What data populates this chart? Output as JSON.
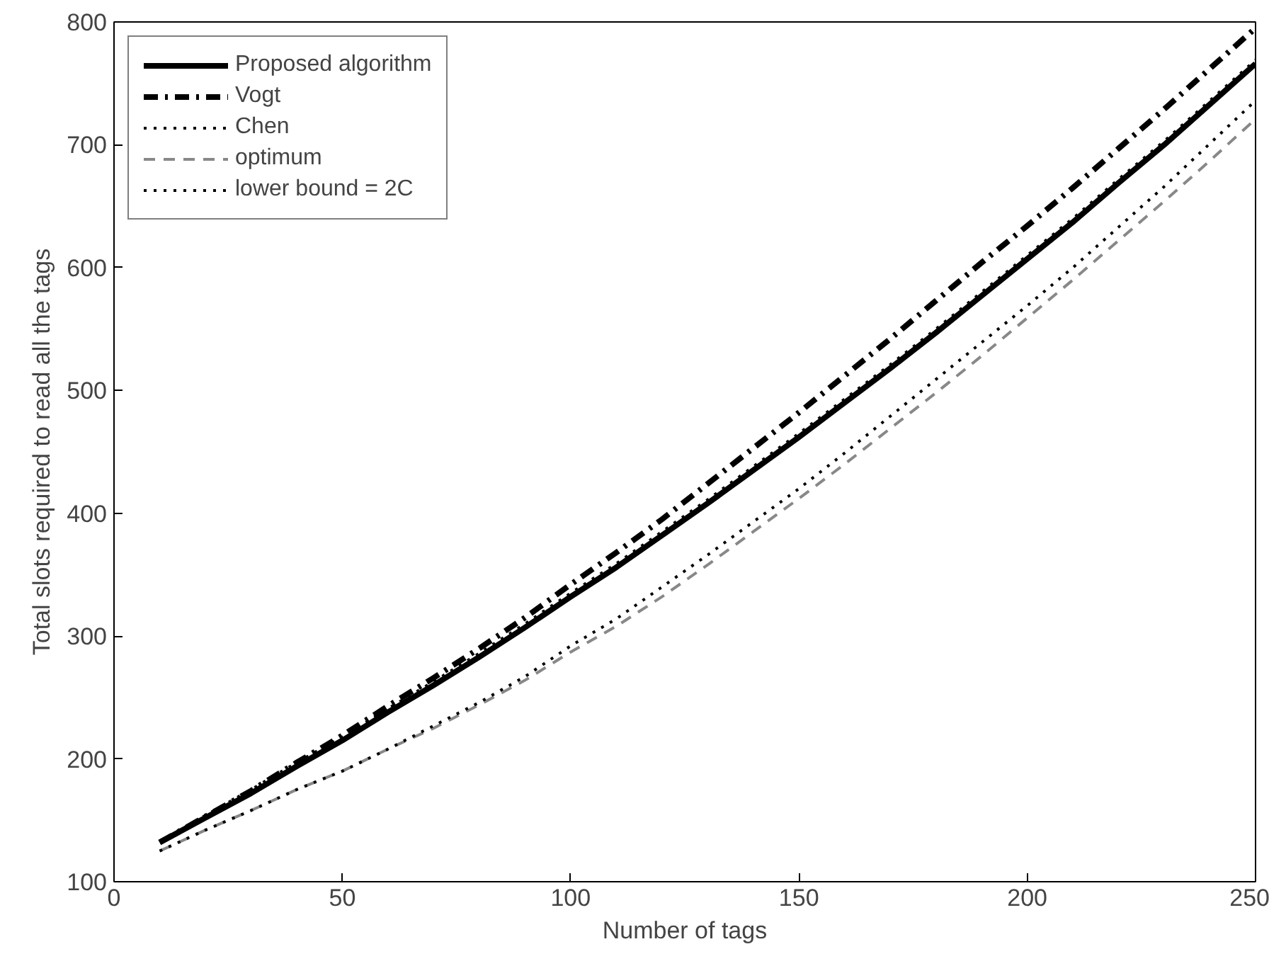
{
  "chart_data": {
    "type": "line",
    "xlabel": "Number of tags",
    "ylabel": "Total slots required to read all the tags",
    "x": [
      10,
      20,
      30,
      40,
      50,
      60,
      70,
      80,
      90,
      100,
      110,
      120,
      130,
      140,
      150,
      160,
      170,
      180,
      190,
      200,
      210,
      220,
      230,
      240,
      250
    ],
    "xlim": [
      0,
      250
    ],
    "xticks": [
      0,
      50,
      100,
      150,
      200,
      250
    ],
    "ylim": [
      100,
      800
    ],
    "yticks": [
      100,
      200,
      300,
      400,
      500,
      600,
      700,
      800
    ],
    "grid": false,
    "legend": "top left",
    "marker": "none",
    "series": [
      {
        "name": "Proposed algorithm",
        "color": "#000000",
        "line_style": "solid",
        "values": [
          132,
          152,
          172,
          194,
          215,
          238,
          260,
          283,
          307,
          332,
          356,
          382,
          408,
          435,
          462,
          490,
          518,
          547,
          577,
          607,
          637,
          669,
          700,
          733,
          766
        ]
      },
      {
        "name": "Vogt",
        "color": "#000000",
        "line_style": "dashdot",
        "values": [
          132,
          153,
          174,
          197,
          219,
          243,
          266,
          290,
          315,
          342,
          368,
          395,
          424,
          453,
          482,
          512,
          542,
          573,
          604,
          634,
          665,
          697,
          729,
          762,
          795
        ]
      },
      {
        "name": "Chen",
        "color": "#000000",
        "line_style": "dotted",
        "values": [
          133,
          154,
          175,
          197,
          218,
          241,
          263,
          286,
          310,
          335,
          359,
          385,
          411,
          438,
          465,
          493,
          521,
          550,
          580,
          610,
          640,
          672,
          703,
          736,
          769
        ]
      },
      {
        "name": "optimum",
        "color": "#888888",
        "line_style": "dashed",
        "values": [
          125,
          142,
          158,
          175,
          190,
          208,
          225,
          244,
          264,
          287,
          308,
          332,
          358,
          385,
          412,
          440,
          469,
          498,
          528,
          559,
          590,
          622,
          654,
          687,
          721
        ]
      },
      {
        "name": "lower bound = 2C",
        "color": "#000000",
        "line_style": "dotted",
        "values": [
          125,
          142,
          158,
          175,
          190,
          208,
          227,
          246,
          267,
          292,
          314,
          340,
          366,
          393,
          420,
          449,
          479,
          509,
          539,
          569,
          600,
          633,
          666,
          701,
          736
        ]
      }
    ]
  }
}
